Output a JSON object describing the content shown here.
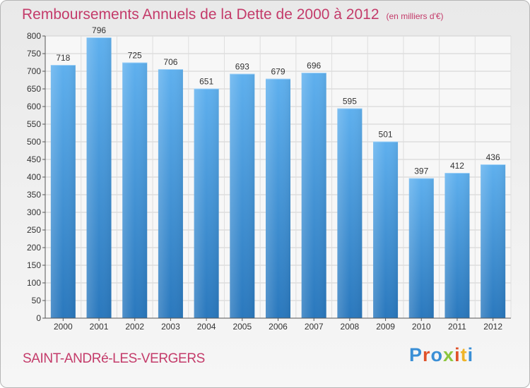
{
  "header": {
    "title": "Remboursements Annuels de la Dette de 2000 à 2012",
    "subtitle": "(en milliers d'€)"
  },
  "location": "SAINT-ANDRé-LES-VERGERS",
  "brand": {
    "text": "Proxiti",
    "colors": [
      "#3a8fd6",
      "#e0522a",
      "#3a8fd6",
      "#8cc63e",
      "#e0522a",
      "#f0b428",
      "#3a8fd6"
    ]
  },
  "chart_data": {
    "type": "bar",
    "title": "Remboursements Annuels de la Dette de 2000 à 2012",
    "ylabel": "en milliers d'€",
    "categories": [
      "2000",
      "2001",
      "2002",
      "2003",
      "2004",
      "2005",
      "2006",
      "2007",
      "2008",
      "2009",
      "2010",
      "2011",
      "2012"
    ],
    "values": [
      718,
      796,
      725,
      706,
      651,
      693,
      679,
      696,
      595,
      501,
      397,
      412,
      436
    ],
    "ylim": [
      0,
      800
    ],
    "yticks": [
      0,
      50,
      100,
      150,
      200,
      250,
      300,
      350,
      400,
      450,
      500,
      550,
      600,
      650,
      700,
      750,
      800
    ],
    "grid": true,
    "bar_color": "#3d96dd"
  }
}
